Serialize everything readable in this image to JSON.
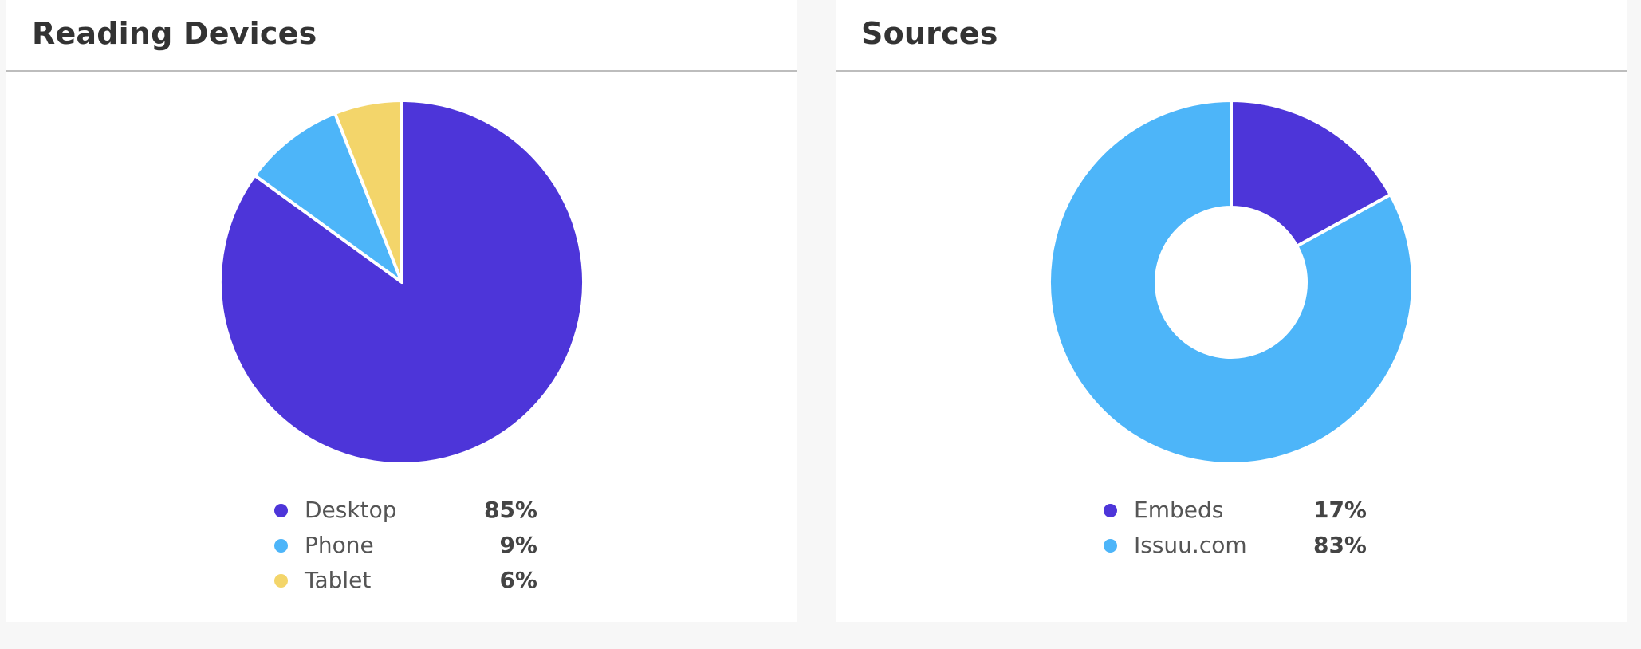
{
  "cards": [
    {
      "title": "Reading Devices",
      "legend": [
        {
          "label": "Desktop",
          "value_label": "85%"
        },
        {
          "label": "Phone",
          "value_label": "9%"
        },
        {
          "label": "Tablet",
          "value_label": "6%"
        }
      ]
    },
    {
      "title": "Sources",
      "legend": [
        {
          "label": "Embeds",
          "value_label": "17%"
        },
        {
          "label": "Issuu.com",
          "value_label": "83%"
        }
      ]
    }
  ],
  "chart_data": [
    {
      "type": "pie",
      "title": "Reading Devices",
      "categories": [
        "Desktop",
        "Phone",
        "Tablet"
      ],
      "values": [
        85,
        9,
        6
      ],
      "colors": [
        "#4d35d9",
        "#4db5f9",
        "#f3d56a"
      ],
      "legend": "bottom"
    },
    {
      "type": "pie",
      "donut": true,
      "title": "Sources",
      "categories": [
        "Embeds",
        "Issuu.com"
      ],
      "values": [
        17,
        83
      ],
      "colors": [
        "#4d35d9",
        "#4db5f9"
      ],
      "legend": "bottom"
    }
  ]
}
